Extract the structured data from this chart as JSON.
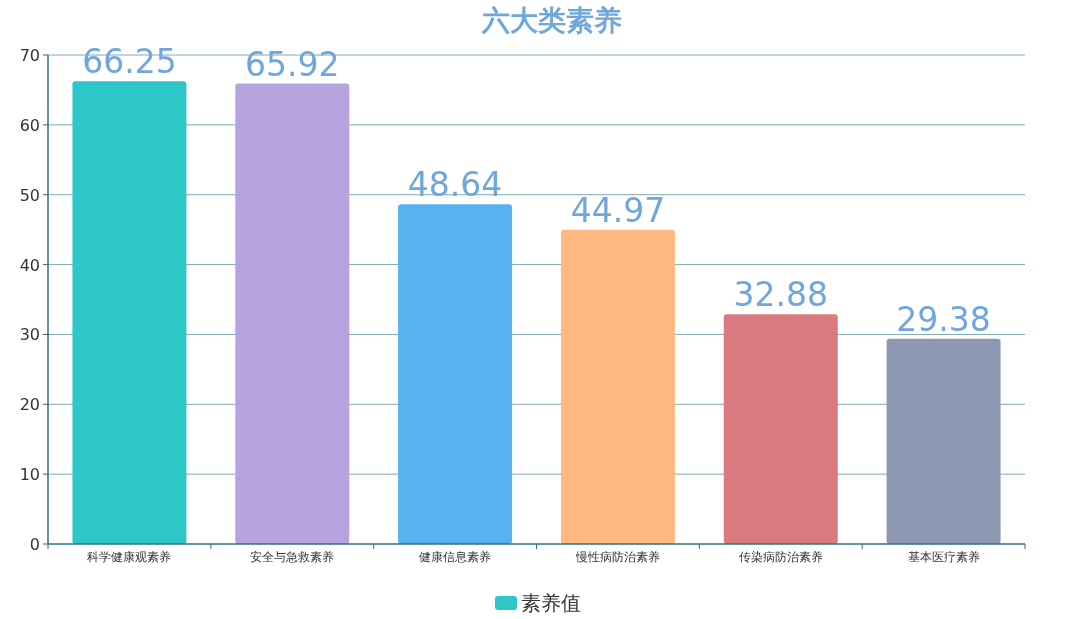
{
  "chart_data": {
    "type": "bar",
    "title": "六大类素养",
    "categories": [
      "科学健康观素养",
      "安全与急救素养",
      "健康信息素养",
      "慢性病防治素养",
      "传染病防治素养",
      "基本医疗素养"
    ],
    "series": [
      {
        "name": "素养值",
        "color": "#2ec7c9",
        "colors": [
          "#2ec7c9",
          "#b6a2de",
          "#5ab1ef",
          "#ffb980",
          "#d87a80",
          "#8d98b3"
        ],
        "values": [
          66.25,
          65.92,
          48.64,
          44.97,
          32.88,
          29.38
        ]
      }
    ],
    "ylim": [
      0,
      70
    ],
    "yticks": [
      0,
      10,
      20,
      30,
      40,
      50,
      60,
      70
    ],
    "grid": "y",
    "legend": "bottom",
    "data_labels": true
  }
}
